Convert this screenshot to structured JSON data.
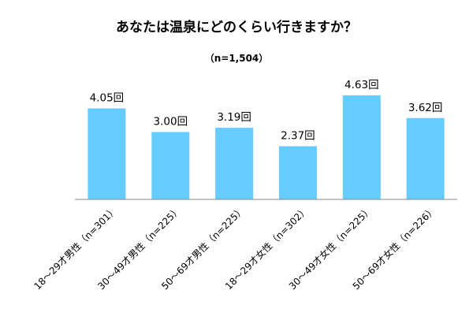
{
  "chart_data": {
    "type": "bar",
    "title": "あなたは温泉にどのくらい行きますか？",
    "subtitle": "（n=1,504）",
    "categories": [
      "18～29才男性（n=301）",
      "30～49才男性（n=225）",
      "50～69才男性（n=225）",
      "18～29才女性（n=302）",
      "30～49才女性（n=225）",
      "50～69才女性（n=226）"
    ],
    "values": [
      4.05,
      3.0,
      3.19,
      2.37,
      4.63,
      3.62
    ],
    "value_labels": [
      "4.05回",
      "3.00回",
      "3.19回",
      "2.37回",
      "4.63回",
      "3.62回"
    ],
    "ylim": [
      0,
      5
    ],
    "grid": false,
    "colors": {
      "bar": "#66ccff",
      "axis": "#888888"
    }
  }
}
